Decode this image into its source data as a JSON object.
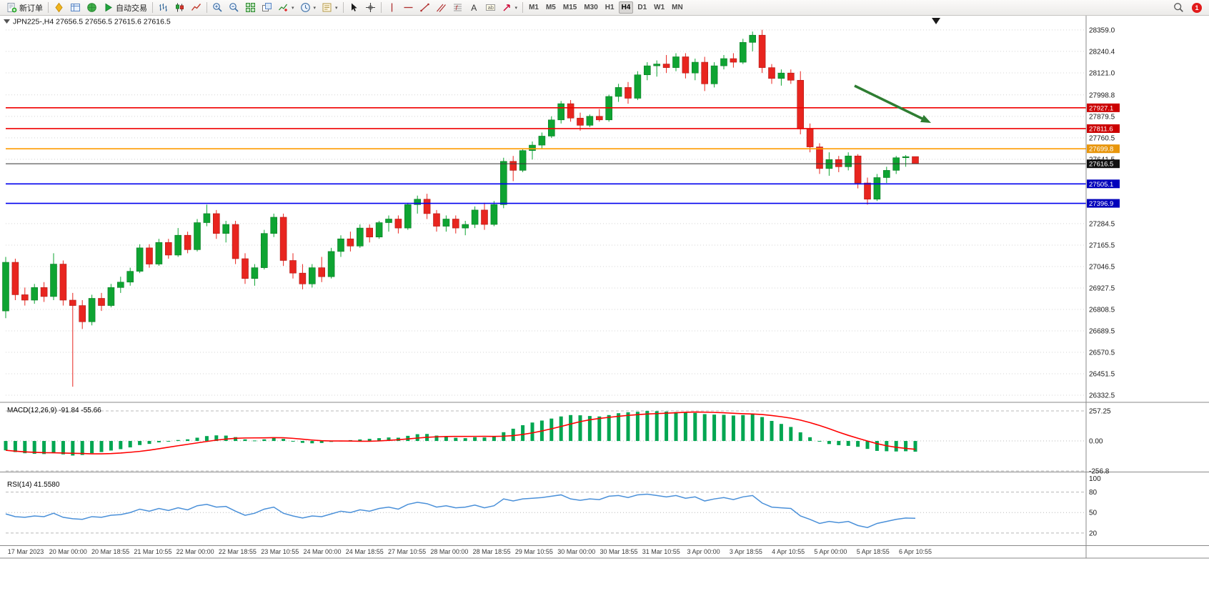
{
  "toolbar": {
    "buttons": [
      {
        "icon": "new-order-icon",
        "label": "新订单"
      },
      {
        "sep": true
      },
      {
        "icon": "market-watch-icon"
      },
      {
        "icon": "data-window-icon"
      },
      {
        "icon": "navigator-icon"
      },
      {
        "icon": "autotrade-icon",
        "label": "自动交易"
      },
      {
        "sep": true
      },
      {
        "icon": "bar-chart-icon"
      },
      {
        "icon": "candlestick-icon"
      },
      {
        "icon": "line-chart-icon"
      },
      {
        "sep": true
      },
      {
        "icon": "zoom-in-icon"
      },
      {
        "icon": "zoom-out-icon"
      },
      {
        "icon": "tile-windows-icon"
      },
      {
        "icon": "arrange-windows-icon"
      },
      {
        "icon": "indicators-icon",
        "caret": true
      },
      {
        "icon": "periods-icon",
        "caret": true
      },
      {
        "icon": "templates-icon",
        "caret": true
      },
      {
        "sep": true
      },
      {
        "icon": "cursor-icon"
      },
      {
        "icon": "crosshair-icon"
      },
      {
        "sep": true
      },
      {
        "icon": "vertical-line-icon"
      },
      {
        "icon": "horizontal-line-icon"
      },
      {
        "icon": "trendline-icon"
      },
      {
        "icon": "channel-icon"
      },
      {
        "icon": "fibonacci-icon"
      },
      {
        "icon": "text-icon"
      },
      {
        "icon": "label-icon"
      },
      {
        "icon": "arrow-tool-icon",
        "caret": true
      },
      {
        "sep": true
      }
    ],
    "timeframes": [
      "M1",
      "M5",
      "M15",
      "M30",
      "H1",
      "H4",
      "D1",
      "W1",
      "MN"
    ],
    "active_timeframe": "H4",
    "right": {
      "search_icon": "search-icon",
      "notification_count": "1"
    }
  },
  "chart_data": {
    "type": "candlestick",
    "symbol": "JPN225-",
    "period": "H4",
    "ohlc_label": "JPN225-,H4 27656.5 27656.5 27615.6 27616.5",
    "current": {
      "open": 27656.5,
      "high": 27656.5,
      "low": 27615.6,
      "close": 27616.5
    },
    "y_axis": {
      "range": [
        26297,
        28430
      ],
      "ticks": [
        "28359.0",
        "28240.4",
        "28121.0",
        "27998.8",
        "27879.5",
        "27760.5",
        "27641.5",
        "27284.5",
        "27165.5",
        "27046.5",
        "26927.5",
        "26808.5",
        "26689.5",
        "26570.5",
        "26451.5",
        "26332.5"
      ]
    },
    "levels": [
      {
        "price": 27927.1,
        "label": "27927.1",
        "color": "#f00000",
        "badge": "#cc0000",
        "width": 1.6
      },
      {
        "price": 27811.6,
        "label": "27811.6",
        "color": "#f00000",
        "badge": "#cc0000",
        "width": 1.6
      },
      {
        "price": 27699.8,
        "label": "27699.8",
        "color": "#ff9c00",
        "badge": "#e8960c",
        "width": 1.6
      },
      {
        "price": 27616.5,
        "label": "27616.5",
        "color": "#333333",
        "badge": "#111111",
        "width": 1.0,
        "current": true
      },
      {
        "price": 27505.1,
        "label": "27505.1",
        "color": "#0000ee",
        "badge": "#0000bb",
        "width": 1.6
      },
      {
        "price": 27396.9,
        "label": "27396.9",
        "color": "#0000ee",
        "badge": "#0000bb",
        "width": 1.6
      }
    ],
    "candles": [
      [
        26800,
        27100,
        26760,
        27070
      ],
      [
        27070,
        27090,
        26860,
        26890
      ],
      [
        26890,
        26930,
        26830,
        26860
      ],
      [
        26860,
        26950,
        26840,
        26930
      ],
      [
        26930,
        26960,
        26850,
        26880
      ],
      [
        26880,
        27120,
        26860,
        27060
      ],
      [
        27060,
        27080,
        26830,
        26860
      ],
      [
        26860,
        26900,
        26380,
        26830
      ],
      [
        26830,
        26860,
        26700,
        26740
      ],
      [
        26740,
        26890,
        26720,
        26870
      ],
      [
        26870,
        26900,
        26800,
        26830
      ],
      [
        26830,
        26950,
        26820,
        26930
      ],
      [
        26930,
        26990,
        26900,
        26960
      ],
      [
        26960,
        27040,
        26940,
        27020
      ],
      [
        27020,
        27170,
        27010,
        27150
      ],
      [
        27150,
        27170,
        27040,
        27060
      ],
      [
        27060,
        27200,
        27050,
        27180
      ],
      [
        27180,
        27200,
        27090,
        27110
      ],
      [
        27110,
        27260,
        27100,
        27220
      ],
      [
        27220,
        27240,
        27120,
        27140
      ],
      [
        27140,
        27310,
        27130,
        27290
      ],
      [
        27290,
        27390,
        27270,
        27340
      ],
      [
        27340,
        27360,
        27200,
        27230
      ],
      [
        27230,
        27300,
        27180,
        27280
      ],
      [
        27280,
        27300,
        27060,
        27090
      ],
      [
        27090,
        27120,
        26950,
        26980
      ],
      [
        26980,
        27060,
        26940,
        27040
      ],
      [
        27040,
        27250,
        27030,
        27230
      ],
      [
        27230,
        27340,
        27210,
        27320
      ],
      [
        27320,
        27340,
        27050,
        27080
      ],
      [
        27080,
        27120,
        26980,
        27010
      ],
      [
        27010,
        27060,
        26920,
        26950
      ],
      [
        26950,
        27060,
        26930,
        27040
      ],
      [
        27040,
        27100,
        26960,
        26990
      ],
      [
        26990,
        27150,
        26980,
        27130
      ],
      [
        27130,
        27220,
        27100,
        27200
      ],
      [
        27200,
        27240,
        27130,
        27160
      ],
      [
        27160,
        27280,
        27150,
        27260
      ],
      [
        27260,
        27280,
        27180,
        27210
      ],
      [
        27210,
        27300,
        27200,
        27290
      ],
      [
        27290,
        27330,
        27240,
        27310
      ],
      [
        27310,
        27330,
        27230,
        27260
      ],
      [
        27260,
        27400,
        27250,
        27390
      ],
      [
        27390,
        27440,
        27340,
        27420
      ],
      [
        27420,
        27450,
        27310,
        27340
      ],
      [
        27340,
        27360,
        27240,
        27270
      ],
      [
        27270,
        27330,
        27240,
        27310
      ],
      [
        27310,
        27330,
        27230,
        27260
      ],
      [
        27260,
        27300,
        27220,
        27280
      ],
      [
        27280,
        27380,
        27260,
        27360
      ],
      [
        27360,
        27400,
        27250,
        27280
      ],
      [
        27280,
        27410,
        27270,
        27390
      ],
      [
        27390,
        27650,
        27370,
        27630
      ],
      [
        27630,
        27660,
        27520,
        27580
      ],
      [
        27580,
        27700,
        27570,
        27690
      ],
      [
        27690,
        27740,
        27640,
        27720
      ],
      [
        27720,
        27790,
        27700,
        27770
      ],
      [
        27770,
        27880,
        27760,
        27860
      ],
      [
        27860,
        27965,
        27840,
        27950
      ],
      [
        27950,
        27970,
        27850,
        27870
      ],
      [
        27870,
        27900,
        27800,
        27830
      ],
      [
        27830,
        27890,
        27820,
        27880
      ],
      [
        27880,
        27920,
        27850,
        27860
      ],
      [
        27860,
        28000,
        27850,
        27990
      ],
      [
        27990,
        28060,
        27960,
        28040
      ],
      [
        28040,
        28070,
        27950,
        27980
      ],
      [
        27980,
        28130,
        27970,
        28110
      ],
      [
        28110,
        28180,
        28080,
        28160
      ],
      [
        28160,
        28190,
        28100,
        28170
      ],
      [
        28170,
        28220,
        28120,
        28150
      ],
      [
        28150,
        28230,
        28130,
        28210
      ],
      [
        28210,
        28230,
        28090,
        28120
      ],
      [
        28120,
        28200,
        28080,
        28180
      ],
      [
        28180,
        28210,
        28020,
        28060
      ],
      [
        28060,
        28180,
        28040,
        28160
      ],
      [
        28160,
        28220,
        28140,
        28200
      ],
      [
        28200,
        28230,
        28150,
        28180
      ],
      [
        28180,
        28310,
        28170,
        28290
      ],
      [
        28290,
        28350,
        28240,
        28330
      ],
      [
        28330,
        28360,
        28120,
        28150
      ],
      [
        28150,
        28170,
        28060,
        28090
      ],
      [
        28090,
        28140,
        28050,
        28120
      ],
      [
        28120,
        28140,
        28060,
        28080
      ],
      [
        28080,
        28130,
        27780,
        27810
      ],
      [
        27810,
        27840,
        27680,
        27710
      ],
      [
        27710,
        27730,
        27560,
        27590
      ],
      [
        27590,
        27680,
        27550,
        27640
      ],
      [
        27640,
        27660,
        27570,
        27600
      ],
      [
        27600,
        27680,
        27580,
        27660
      ],
      [
        27660,
        27670,
        27480,
        27510
      ],
      [
        27510,
        27540,
        27390,
        27420
      ],
      [
        27420,
        27560,
        27410,
        27540
      ],
      [
        27540,
        27600,
        27510,
        27580
      ],
      [
        27580,
        27660,
        27560,
        27650
      ],
      [
        27650,
        27665,
        27600,
        27656
      ],
      [
        27656.5,
        27656.5,
        27615.6,
        27616.5
      ]
    ],
    "time_labels": [
      "17 Mar 2023",
      "20 Mar 00:00",
      "20 Mar 18:55",
      "21 Mar 10:55",
      "22 Mar 00:00",
      "22 Mar 18:55",
      "23 Mar 10:55",
      "24 Mar 00:00",
      "24 Mar 18:55",
      "27 Mar 10:55",
      "28 Mar 00:00",
      "28 Mar 18:55",
      "29 Mar 10:55",
      "30 Mar 00:00",
      "30 Mar 18:55",
      "31 Mar 10:55",
      "3 Apr 00:00",
      "3 Apr 18:55",
      "4 Apr 10:55",
      "5 Apr 00:00",
      "5 Apr 18:55",
      "6 Apr 10:55"
    ]
  },
  "indicators": {
    "macd": {
      "label": "MACD(12,26,9) -91.84 -55.66",
      "main_current": -91.84,
      "signal_current": -55.66,
      "axis_labels": [
        "257.25",
        "0.00",
        "-256.8"
      ],
      "levels": [
        257.25,
        0,
        -256.8
      ],
      "range": [
        -263,
        325
      ],
      "values": [
        -80,
        -95,
        -105,
        -110,
        -112,
        -105,
        -115,
        -125,
        -120,
        -105,
        -95,
        -82,
        -70,
        -55,
        -35,
        -25,
        -12,
        -2,
        8,
        14,
        28,
        42,
        48,
        46,
        33,
        14,
        4,
        14,
        28,
        18,
        -2,
        -16,
        -20,
        -17,
        -8,
        2,
        7,
        13,
        18,
        24,
        30,
        28,
        44,
        58,
        60,
        46,
        36,
        27,
        24,
        32,
        30,
        38,
        75,
        105,
        135,
        158,
        175,
        192,
        210,
        222,
        220,
        214,
        210,
        222,
        238,
        246,
        250,
        257,
        255,
        252,
        248,
        244,
        240,
        230,
        226,
        224,
        218,
        222,
        228,
        205,
        172,
        146,
        120,
        74,
        32,
        -6,
        -26,
        -36,
        -42,
        -50,
        -68,
        -85,
        -88,
        -90,
        -88,
        -91.84
      ]
    },
    "rsi": {
      "label": "RSI(14) 41.5580",
      "current": 41.558,
      "axis_labels": [
        "100",
        "80",
        "50",
        "20"
      ],
      "levels": [
        80,
        50,
        20
      ],
      "range": [
        2,
        109
      ],
      "values": [
        48,
        44,
        43,
        45,
        44,
        49,
        43,
        41,
        40,
        44,
        43,
        46,
        47,
        50,
        55,
        52,
        56,
        53,
        57,
        54,
        60,
        62,
        58,
        59,
        52,
        46,
        49,
        55,
        58,
        49,
        45,
        42,
        45,
        44,
        48,
        52,
        50,
        54,
        52,
        56,
        58,
        55,
        62,
        65,
        63,
        58,
        60,
        57,
        58,
        61,
        57,
        60,
        70,
        67,
        70,
        71,
        72,
        74,
        76,
        70,
        68,
        70,
        69,
        74,
        75,
        72,
        76,
        77,
        75,
        73,
        75,
        71,
        73,
        67,
        70,
        72,
        69,
        73,
        75,
        64,
        58,
        57,
        56,
        45,
        40,
        34,
        37,
        35,
        37,
        31,
        28,
        34,
        37,
        40,
        42,
        41.56
      ]
    }
  },
  "annotations": [
    {
      "type": "arrow",
      "from": [
        1196,
        120
      ],
      "to": [
        1303,
        172
      ],
      "color": "#2e7d32"
    }
  ],
  "colors": {
    "up": "#0ea432",
    "up_border": "#0b7c25",
    "down": "#e8251f",
    "down_border": "#b01a15",
    "macd_hist": "#00a651",
    "macd_signal": "#ff0000",
    "rsi_line": "#4a90d9",
    "grid": "#d4d4d4",
    "frame": "#8a8a8a"
  }
}
